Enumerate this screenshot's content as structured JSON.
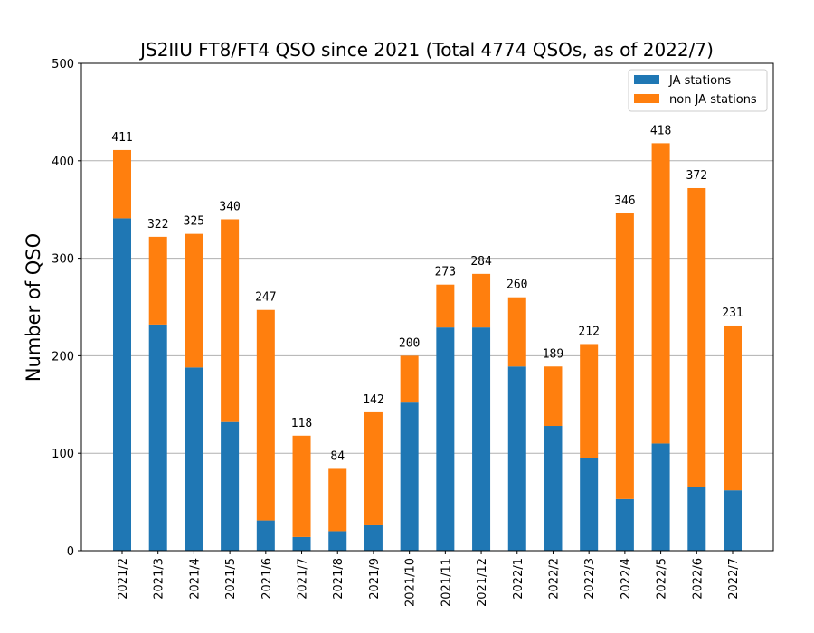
{
  "chart_data": {
    "type": "bar",
    "stacked": true,
    "title": "JS2IIU FT8/FT4 QSO since 2021 (Total 4774 QSOs, as of 2022/7)",
    "xlabel": "",
    "ylabel": "Number of QSO",
    "ylim": [
      0,
      500
    ],
    "yticks": [
      0,
      100,
      200,
      300,
      400,
      500
    ],
    "grid": "y",
    "legend_position": "top-right",
    "categories": [
      "2021/2",
      "2021/3",
      "2021/4",
      "2021/5",
      "2021/6",
      "2021/7",
      "2021/8",
      "2021/9",
      "2021/10",
      "2021/11",
      "2021/12",
      "2022/1",
      "2022/2",
      "2022/3",
      "2022/4",
      "2022/5",
      "2022/6",
      "2022/7"
    ],
    "series": [
      {
        "name": "JA stations",
        "color": "#1f77b4",
        "values": [
          341,
          232,
          188,
          132,
          31,
          14,
          20,
          26,
          152,
          229,
          229,
          189,
          128,
          95,
          53,
          110,
          65,
          62
        ]
      },
      {
        "name": "non JA stations",
        "color": "#ff7f0e",
        "values": [
          70,
          90,
          137,
          208,
          216,
          104,
          64,
          116,
          48,
          44,
          55,
          71,
          61,
          117,
          293,
          308,
          307,
          169
        ]
      }
    ],
    "totals": [
      411,
      322,
      325,
      340,
      247,
      118,
      84,
      142,
      200,
      273,
      284,
      260,
      189,
      212,
      346,
      418,
      372,
      231
    ]
  }
}
